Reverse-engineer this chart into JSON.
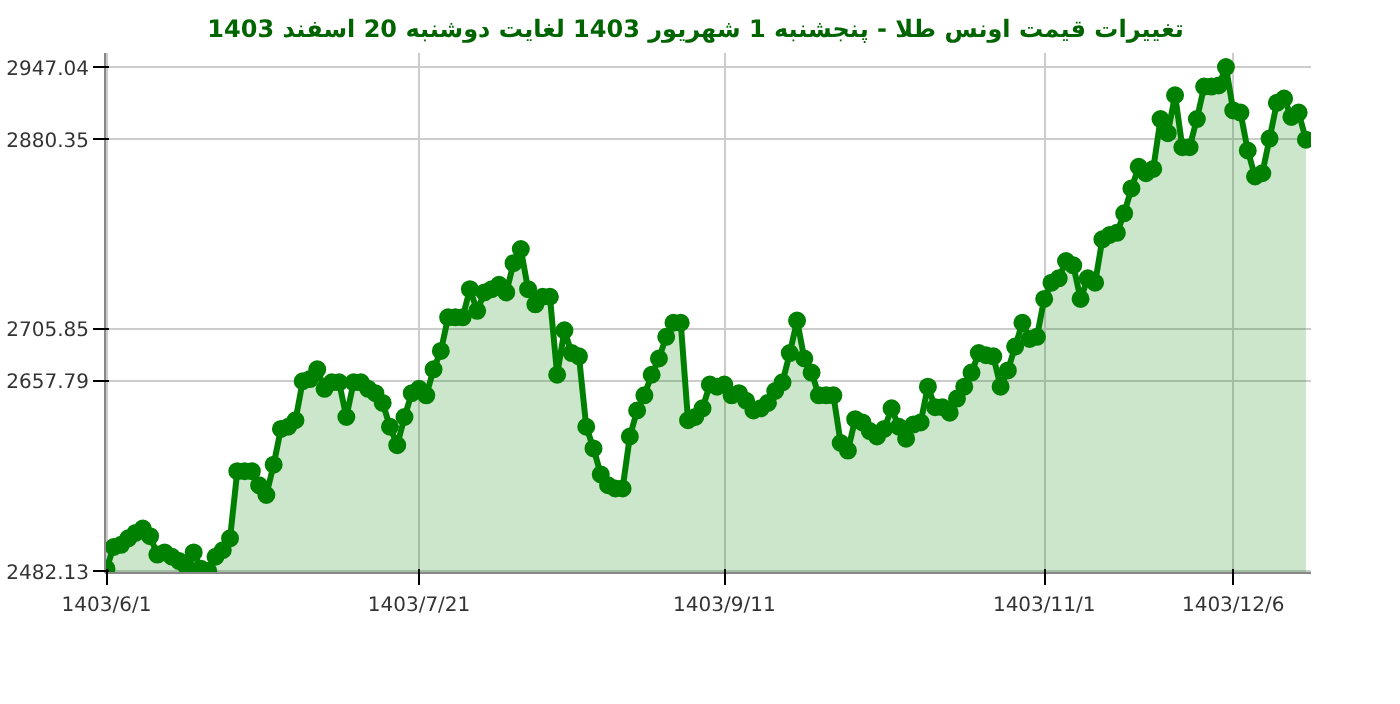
{
  "chart_data": {
    "type": "area",
    "title": "تغییرات قیمت اونس طلا - پنجشنبه  1 شهریور 1403 لغایت  دوشنبه  20 اسفند 1403",
    "categories": [
      "1403/6/1",
      null,
      null,
      null,
      null,
      null,
      null,
      null,
      null,
      null,
      null,
      null,
      null,
      null,
      null,
      null,
      null,
      null,
      null,
      null,
      null,
      null,
      null,
      null,
      null,
      null,
      null,
      null,
      null,
      null,
      null,
      null,
      null,
      null,
      null,
      null,
      null,
      null,
      null,
      null,
      null,
      null,
      null,
      "1403/7/21",
      null,
      null,
      null,
      null,
      null,
      null,
      null,
      null,
      null,
      null,
      null,
      null,
      null,
      null,
      null,
      null,
      null,
      null,
      null,
      null,
      null,
      null,
      null,
      null,
      null,
      null,
      null,
      null,
      null,
      null,
      null,
      null,
      null,
      null,
      null,
      null,
      null,
      null,
      null,
      null,
      null,
      "1403/9/11",
      null,
      null,
      null,
      null,
      null,
      null,
      null,
      null,
      null,
      null,
      null,
      null,
      null,
      null,
      null,
      null,
      null,
      null,
      null,
      null,
      null,
      null,
      null,
      null,
      null,
      null,
      null,
      null,
      null,
      null,
      null,
      null,
      null,
      null,
      null,
      null,
      null,
      null,
      null,
      null,
      null,
      null,
      null,
      "1403/11/1",
      null,
      null,
      null,
      null,
      null,
      null,
      null,
      null,
      null,
      null,
      null,
      null,
      null,
      null,
      null,
      null,
      null,
      null,
      null,
      null,
      null,
      null,
      null,
      null,
      null,
      "1403/12/6",
      null,
      null,
      null,
      null,
      null,
      null,
      null,
      null,
      null,
      null
    ],
    "series": [
      {
        "color": "#008000",
        "values": [
          2484,
          2504,
          2506,
          2512,
          2517,
          2521,
          2514,
          2497,
          2499,
          2495,
          2491,
          2486,
          2499,
          2484,
          2482,
          2495,
          2501,
          2512,
          2574,
          2574,
          2574,
          2561,
          2552,
          2580,
          2613,
          2615,
          2621,
          2657,
          2659,
          2668,
          2650,
          2656,
          2656,
          2624,
          2656,
          2656,
          2650,
          2646,
          2637,
          2615,
          2598,
          2624,
          2646,
          2650,
          2644,
          2668,
          2685,
          2716,
          2716,
          2716,
          2742,
          2722,
          2739,
          2742,
          2746,
          2739,
          2766,
          2779,
          2742,
          2728,
          2735,
          2735,
          2663,
          2704,
          2683,
          2680,
          2615,
          2595,
          2571,
          2561,
          2558,
          2558,
          2606,
          2630,
          2644,
          2663,
          2678,
          2698,
          2711,
          2711,
          2621,
          2624,
          2632,
          2654,
          2652,
          2654,
          2644,
          2646,
          2639,
          2630,
          2632,
          2637,
          2648,
          2656,
          2683,
          2713,
          2678,
          2665,
          2644,
          2644,
          2644,
          2600,
          2593,
          2622,
          2619,
          2611,
          2606,
          2613,
          2632,
          2615,
          2604,
          2617,
          2619,
          2652,
          2633,
          2633,
          2628,
          2641,
          2652,
          2665,
          2683,
          2681,
          2680,
          2652,
          2667,
          2689,
          2711,
          2696,
          2698,
          2733,
          2748,
          2752,
          2768,
          2764,
          2733,
          2752,
          2748,
          2788,
          2792,
          2794,
          2812,
          2835,
          2855,
          2849,
          2853,
          2899,
          2886,
          2921,
          2873,
          2873,
          2899,
          2929,
          2929,
          2930,
          2947,
          2907,
          2905,
          2870,
          2846,
          2849,
          2881,
          2914,
          2918,
          2901,
          2905,
          2880
        ]
      }
    ],
    "ylim": [
      2480,
      2960
    ],
    "yticks": [
      2482.13,
      2657.79,
      2705.85,
      2880.35,
      2947.04
    ],
    "grid": true,
    "marker": "circle",
    "line_style": "solid"
  }
}
